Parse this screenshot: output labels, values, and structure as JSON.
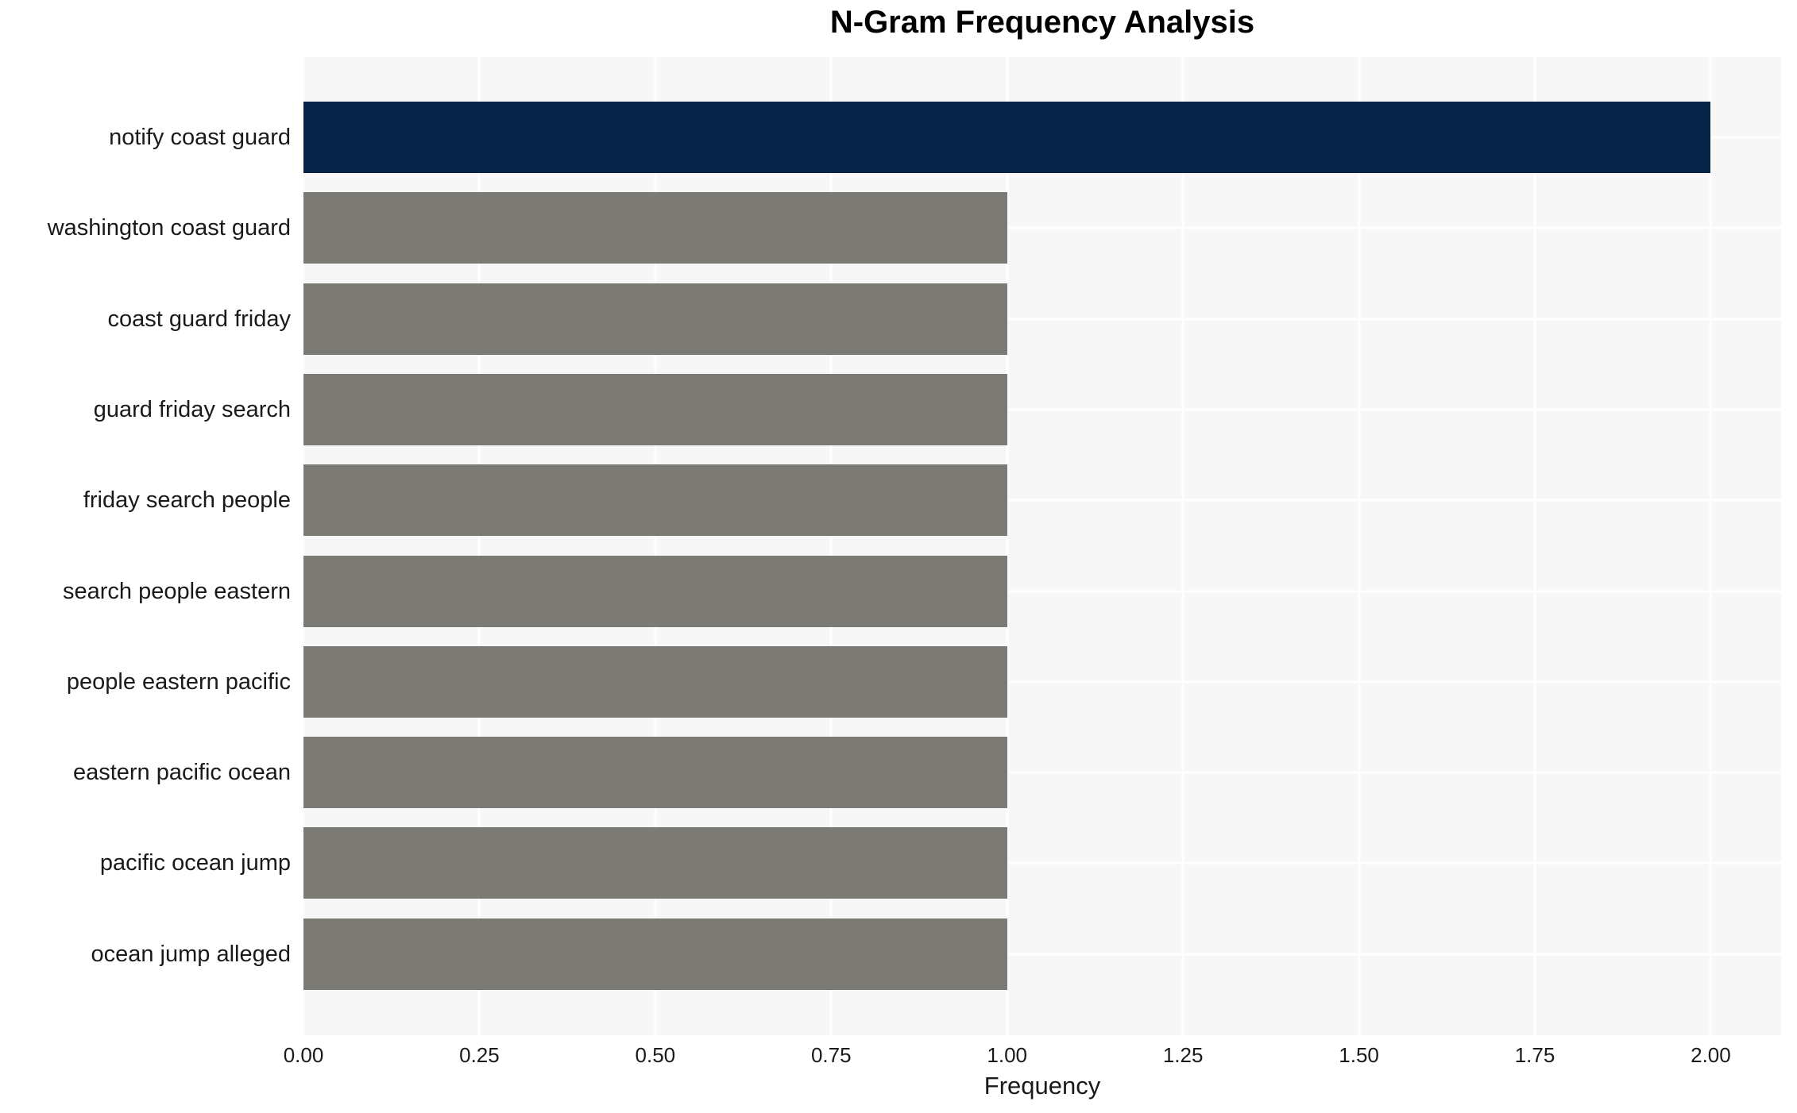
{
  "chart_data": {
    "type": "bar",
    "orientation": "horizontal",
    "title": "N-Gram Frequency Analysis",
    "xlabel": "Frequency",
    "ylabel": "",
    "categories": [
      "notify coast guard",
      "washington coast guard",
      "coast guard friday",
      "guard friday search",
      "friday search people",
      "search people eastern",
      "people eastern pacific",
      "eastern pacific ocean",
      "pacific ocean jump",
      "ocean jump alleged"
    ],
    "values": [
      2,
      1,
      1,
      1,
      1,
      1,
      1,
      1,
      1,
      1
    ],
    "bar_colors": [
      "#042347",
      "#7b7a75",
      "#7b7a75",
      "#7b7a75",
      "#7b7a75",
      "#7b7a75",
      "#7b7a75",
      "#7b7a75",
      "#7b7a75",
      "#7b7a75"
    ],
    "xlim": [
      0,
      2.1
    ],
    "xticks": [
      0,
      0.25,
      0.5,
      0.75,
      1.0,
      1.25,
      1.5,
      1.75,
      2.0
    ],
    "xtick_labels": [
      "0.00",
      "0.25",
      "0.50",
      "0.75",
      "1.00",
      "1.25",
      "1.50",
      "1.75",
      "2.00"
    ],
    "grid": true,
    "legend": false,
    "colors": {
      "highlight_bar": "#042347",
      "default_bar": "#7b7a75",
      "plot_background": "#f7f7f8",
      "grid_line": "#ffffff",
      "text": "#1a1a1a",
      "title_text": "#000000",
      "page_background": "#ffffff"
    }
  }
}
